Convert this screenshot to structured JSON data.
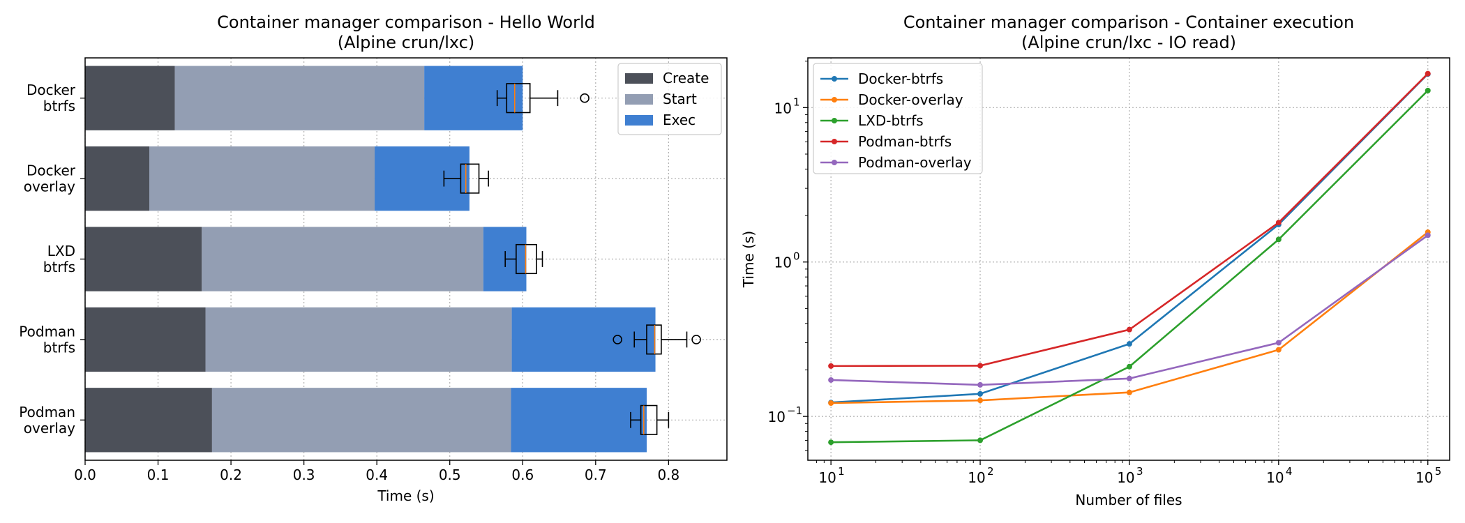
{
  "chart_data": [
    {
      "type": "bar",
      "orientation": "horizontal",
      "stacked": true,
      "title": "Container manager comparison - Hello World\n(Alpine crun/lxc)",
      "xlabel": "Time (s)",
      "ylabel": "",
      "xlim": [
        0,
        0.88
      ],
      "xticks": [
        "0.0",
        "0.1",
        "0.2",
        "0.3",
        "0.4",
        "0.5",
        "0.6",
        "0.7",
        "0.8"
      ],
      "categories": [
        "Docker\nbtrfs",
        "Docker\noverlay",
        "LXD\nbtrfs",
        "Podman\nbtrfs",
        "Podman\noverlay"
      ],
      "series": [
        {
          "name": "Create",
          "color": "#4c5059",
          "values": [
            0.123,
            0.088,
            0.16,
            0.165,
            0.174
          ]
        },
        {
          "name": "Start",
          "color": "#939eb3",
          "values": [
            0.342,
            0.309,
            0.386,
            0.42,
            0.41
          ]
        },
        {
          "name": "Exec",
          "color": "#3f7fd1",
          "values": [
            0.135,
            0.13,
            0.059,
            0.197,
            0.186
          ]
        }
      ],
      "boxplots": [
        {
          "whisker_low": 0.565,
          "q1": 0.578,
          "median": 0.589,
          "q3": 0.61,
          "whisker_high": 0.648,
          "outliers": [
            0.685
          ]
        },
        {
          "whisker_low": 0.492,
          "q1": 0.515,
          "median": 0.522,
          "q3": 0.54,
          "whisker_high": 0.553,
          "outliers": []
        },
        {
          "whisker_low": 0.576,
          "q1": 0.591,
          "median": 0.604,
          "q3": 0.619,
          "whisker_high": 0.627,
          "outliers": []
        },
        {
          "whisker_low": 0.753,
          "q1": 0.77,
          "median": 0.781,
          "q3": 0.79,
          "whisker_high": 0.825,
          "outliers": [
            0.73,
            0.838
          ]
        },
        {
          "whisker_low": 0.748,
          "q1": 0.762,
          "median": 0.766,
          "q3": 0.784,
          "whisker_high": 0.8,
          "outliers": []
        }
      ],
      "grid": true,
      "legend_position": "top-right"
    },
    {
      "type": "line",
      "title": "Container manager comparison - Container execution\n(Alpine crun/lxc - IO read)",
      "xlabel": "Number of files",
      "ylabel": "Time (s)",
      "xscale": "log",
      "yscale": "log",
      "xlim": [
        7,
        140000
      ],
      "ylim": [
        0.052,
        21
      ],
      "xticks": [
        10,
        100,
        1000,
        10000,
        100000
      ],
      "xtick_exponents": [
        "1",
        "2",
        "3",
        "4",
        "5"
      ],
      "yticks": [
        0.1,
        1,
        10
      ],
      "ytick_exponents": [
        "−1",
        "0",
        "1"
      ],
      "x": [
        10,
        100,
        1000,
        10000,
        100000
      ],
      "series": [
        {
          "name": "Docker-btrfs",
          "color": "#1f77b4",
          "values": [
            0.123,
            0.14,
            0.295,
            1.75,
            16.5
          ]
        },
        {
          "name": "Docker-overlay",
          "color": "#ff7f0e",
          "values": [
            0.122,
            0.127,
            0.143,
            0.27,
            1.56
          ]
        },
        {
          "name": "LXD-btrfs",
          "color": "#2ca02c",
          "values": [
            0.068,
            0.07,
            0.21,
            1.4,
            12.9
          ]
        },
        {
          "name": "Podman-btrfs",
          "color": "#d62728",
          "values": [
            0.212,
            0.213,
            0.365,
            1.8,
            16.6
          ]
        },
        {
          "name": "Podman-overlay",
          "color": "#9467bd",
          "values": [
            0.172,
            0.16,
            0.176,
            0.3,
            1.49
          ]
        }
      ],
      "grid": true,
      "legend_position": "top-left"
    }
  ]
}
